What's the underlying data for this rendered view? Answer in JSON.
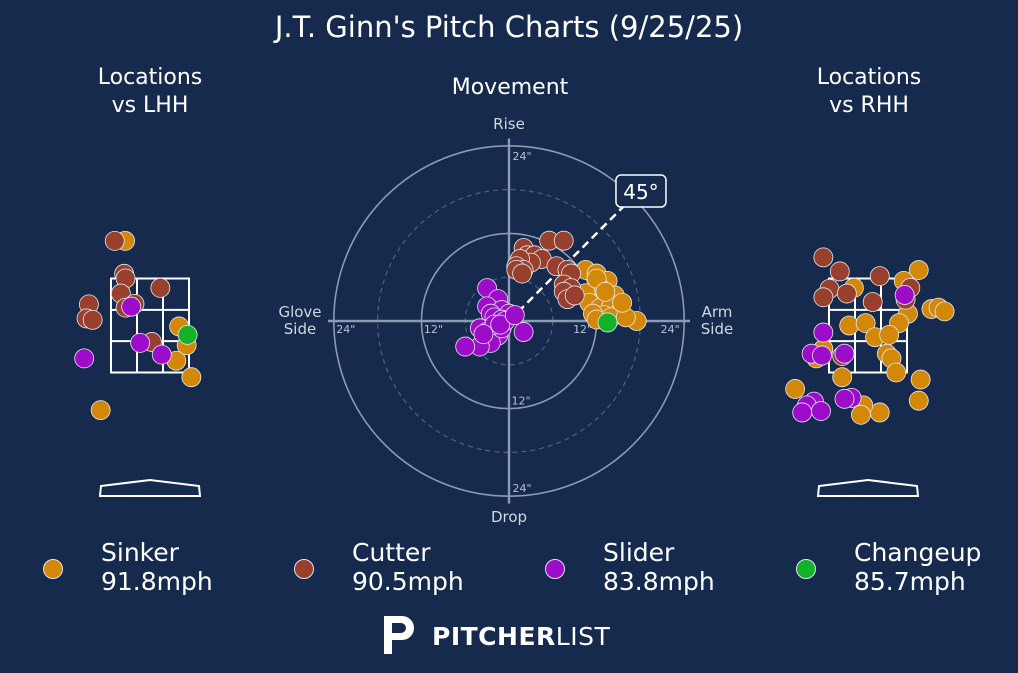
{
  "title": "J.T. Ginn's Pitch Charts (9/25/25)",
  "colors": {
    "background": "#152a4d",
    "Sinker": "#d4880a",
    "Cutter": "#993f2d",
    "Slider": "#9c0cc9",
    "Changeup": "#12b229"
  },
  "chart_data": [
    {
      "type": "scatter",
      "title": "Locations\nvs LHH",
      "xlim": [
        -2.4,
        2.4
      ],
      "ylim": [
        -0.2,
        5.0
      ],
      "strike_zone": {
        "x": [
          -0.83,
          0.83
        ],
        "y": [
          1.5,
          3.5
        ]
      },
      "series": [
        {
          "name": "Sinker",
          "points": [
            [
              -0.53,
              4.3
            ],
            [
              0.56,
              1.75
            ],
            [
              0.78,
              2.08
            ],
            [
              0.88,
              1.4
            ],
            [
              0.62,
              2.48
            ],
            [
              -1.05,
              0.7
            ]
          ]
        },
        {
          "name": "Cutter",
          "points": [
            [
              -0.75,
              4.3
            ],
            [
              -0.55,
              3.6
            ],
            [
              -0.52,
              3.5
            ],
            [
              -0.62,
              3.18
            ],
            [
              -0.33,
              2.96
            ],
            [
              0.22,
              3.3
            ],
            [
              -1.3,
              2.95
            ],
            [
              -1.35,
              2.65
            ],
            [
              -1.22,
              2.62
            ],
            [
              -0.52,
              2.88
            ],
            [
              0.04,
              2.15
            ]
          ]
        },
        {
          "name": "Slider",
          "points": [
            [
              -0.4,
              2.9
            ],
            [
              -0.21,
              2.13
            ],
            [
              0.25,
              1.88
            ],
            [
              -1.4,
              1.8
            ]
          ]
        },
        {
          "name": "Changeup",
          "points": [
            [
              0.8,
              2.3
            ]
          ]
        }
      ]
    },
    {
      "type": "scatter",
      "title": "Movement",
      "xlabel": "Glove\nSide",
      "xlabel_right": "Arm\nSide",
      "ylabel_top": "Rise",
      "ylabel_bottom": "Drop",
      "units": "inches",
      "xlim": [
        -24,
        24
      ],
      "ylim": [
        -24,
        24
      ],
      "ring_labels": [
        "12\"",
        "24\""
      ],
      "arm_angle_label": "45°",
      "arm_angle_deg": 45,
      "series": [
        {
          "name": "Sinker",
          "points": [
            [
              10.5,
              7.0
            ],
            [
              12.0,
              6.5
            ],
            [
              13.5,
              5.5
            ],
            [
              12.5,
              4.5
            ],
            [
              11.5,
              3.5
            ],
            [
              13.0,
              3.0
            ],
            [
              14.5,
              3.5
            ],
            [
              10.5,
              3.8
            ],
            [
              11.0,
              2.5
            ],
            [
              12.5,
              1.8
            ],
            [
              14.0,
              2.0
            ],
            [
              15.0,
              1.0
            ],
            [
              13.0,
              0.8
            ],
            [
              11.5,
              1.0
            ],
            [
              12.0,
              0.2
            ],
            [
              14.0,
              0.5
            ],
            [
              17.5,
              0.0
            ],
            [
              16.0,
              0.5
            ],
            [
              15.5,
              2.5
            ],
            [
              12.0,
              5.8
            ],
            [
              13.2,
              4.0
            ]
          ]
        },
        {
          "name": "Cutter",
          "points": [
            [
              2.0,
              10.0
            ],
            [
              2.5,
              9.0
            ],
            [
              3.5,
              9.0
            ],
            [
              4.5,
              8.5
            ],
            [
              3.0,
              8.0
            ],
            [
              1.5,
              8.5
            ],
            [
              1.0,
              7.5
            ],
            [
              2.0,
              7.0
            ],
            [
              5.5,
              11.0
            ],
            [
              7.5,
              11.0
            ],
            [
              6.5,
              7.5
            ],
            [
              8.0,
              7.0
            ],
            [
              8.5,
              6.5
            ],
            [
              7.5,
              5.0
            ],
            [
              8.5,
              4.5
            ],
            [
              7.5,
              4.0
            ],
            [
              8.0,
              3.0
            ],
            [
              9.0,
              3.5
            ],
            [
              1.0,
              7.0
            ],
            [
              1.8,
              6.5
            ]
          ]
        },
        {
          "name": "Slider",
          "points": [
            [
              -3.0,
              4.5
            ],
            [
              -1.5,
              3.0
            ],
            [
              -3.0,
              2.0
            ],
            [
              -1.0,
              1.5
            ],
            [
              0.0,
              1.0
            ],
            [
              -2.5,
              1.0
            ],
            [
              -2.0,
              0.5
            ],
            [
              -1.0,
              0.2
            ],
            [
              -4.0,
              -1.0
            ],
            [
              -3.0,
              -1.5
            ],
            [
              -2.0,
              -1.0
            ],
            [
              -1.5,
              -2.0
            ],
            [
              -2.5,
              -3.0
            ],
            [
              -4.0,
              -3.5
            ],
            [
              -6.0,
              -3.5
            ],
            [
              -1.0,
              -1.0
            ],
            [
              -0.5,
              0.0
            ],
            [
              2.0,
              -1.5
            ],
            [
              -2.0,
              -0.5
            ],
            [
              -3.5,
              -1.8
            ],
            [
              -1.2,
              -0.5
            ],
            [
              0.8,
              0.8
            ]
          ]
        },
        {
          "name": "Changeup",
          "points": [
            [
              13.5,
              -0.2
            ]
          ]
        }
      ]
    },
    {
      "type": "scatter",
      "title": "Locations\nvs RHH",
      "xlim": [
        -2.4,
        2.4
      ],
      "ylim": [
        -0.2,
        5.0
      ],
      "strike_zone": {
        "x": [
          -0.83,
          0.83
        ],
        "y": [
          1.5,
          3.5
        ]
      },
      "series": [
        {
          "name": "Sinker",
          "points": [
            [
              1.08,
              3.68
            ],
            [
              0.76,
              3.45
            ],
            [
              0.85,
              2.75
            ],
            [
              0.66,
              2.55
            ],
            [
              1.35,
              2.85
            ],
            [
              1.5,
              2.88
            ],
            [
              1.63,
              2.8
            ],
            [
              -0.3,
              3.3
            ],
            [
              -0.4,
              2.5
            ],
            [
              -0.05,
              2.55
            ],
            [
              0.15,
              2.25
            ],
            [
              0.45,
              2.3
            ],
            [
              0.4,
              1.9
            ],
            [
              0.5,
              1.8
            ],
            [
              -0.95,
              2.0
            ],
            [
              -1.1,
              1.8
            ],
            [
              -0.55,
              1.4
            ],
            [
              -1.55,
              1.15
            ],
            [
              1.12,
              1.35
            ],
            [
              1.08,
              0.9
            ],
            [
              0.25,
              0.65
            ],
            [
              -0.1,
              0.8
            ],
            [
              -0.15,
              0.6
            ],
            [
              0.6,
              1.5
            ]
          ]
        },
        {
          "name": "Cutter",
          "points": [
            [
              -0.95,
              3.95
            ],
            [
              -0.6,
              3.65
            ],
            [
              0.25,
              3.55
            ],
            [
              0.9,
              3.3
            ],
            [
              -0.82,
              3.28
            ],
            [
              -0.45,
              3.18
            ],
            [
              -0.95,
              3.1
            ],
            [
              -0.55,
              1.85
            ],
            [
              0.8,
              3.05
            ],
            [
              0.1,
              3.0
            ]
          ]
        },
        {
          "name": "Slider",
          "points": [
            [
              -0.95,
              2.35
            ],
            [
              -0.5,
              1.9
            ],
            [
              -1.2,
              1.9
            ],
            [
              0.78,
              3.15
            ],
            [
              -0.35,
              0.96
            ],
            [
              -0.5,
              0.94
            ],
            [
              -1.15,
              0.88
            ],
            [
              -1.3,
              0.8
            ],
            [
              -1.0,
              0.68
            ],
            [
              -1.4,
              0.65
            ],
            [
              -0.98,
              1.86
            ]
          ]
        },
        {
          "name": "Changeup",
          "points": []
        }
      ]
    }
  ],
  "legend": [
    {
      "name": "Sinker",
      "velo": "91.8mph"
    },
    {
      "name": "Cutter",
      "velo": "90.5mph"
    },
    {
      "name": "Slider",
      "velo": "83.8mph"
    },
    {
      "name": "Changeup",
      "velo": "85.7mph"
    }
  ],
  "brand": {
    "bold": "PITCHER",
    "light": "LIST",
    "icon": "pitcherlist-logo-icon"
  }
}
